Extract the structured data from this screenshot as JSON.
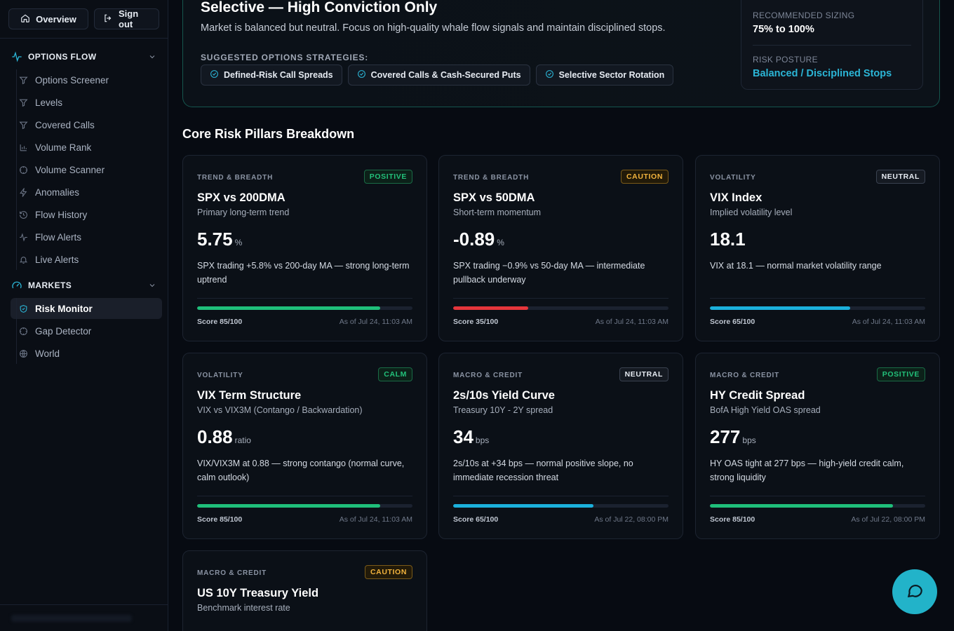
{
  "sidebar": {
    "overview_label": "Overview",
    "signout_label": "Sign out",
    "sections": [
      {
        "label": "OPTIONS FLOW",
        "items": [
          {
            "label": "Options Screener",
            "icon": "filter-icon"
          },
          {
            "label": "Levels",
            "icon": "filter-icon"
          },
          {
            "label": "Covered Calls",
            "icon": "filter-icon"
          },
          {
            "label": "Volume Rank",
            "icon": "bar-chart-icon"
          },
          {
            "label": "Volume Scanner",
            "icon": "scanner-icon"
          },
          {
            "label": "Anomalies",
            "icon": "bolt-icon"
          },
          {
            "label": "Flow History",
            "icon": "history-icon"
          },
          {
            "label": "Flow Alerts",
            "icon": "pulse-icon"
          },
          {
            "label": "Live Alerts",
            "icon": "bell-icon"
          }
        ]
      },
      {
        "label": "MARKETS",
        "items": [
          {
            "label": "Risk Monitor",
            "icon": "shield-icon",
            "active": true
          },
          {
            "label": "Gap Detector",
            "icon": "scanner-icon"
          },
          {
            "label": "World",
            "icon": "globe-icon"
          }
        ]
      }
    ]
  },
  "hero": {
    "title": "Selective — High Conviction Only",
    "description": "Market is balanced but neutral. Focus on high-quality whale flow signals and maintain disciplined stops.",
    "strategies_label": "SUGGESTED OPTIONS STRATEGIES:",
    "strategies": [
      "Defined-Risk Call Spreads",
      "Covered Calls & Cash-Secured Puts",
      "Selective Sector Rotation"
    ],
    "sizing_label": "RECOMMENDED SIZING",
    "sizing_value": "75% to 100%",
    "posture_label": "RISK POSTURE",
    "posture_value": "Balanced / Disciplined Stops"
  },
  "section_title": "Core Risk Pillars Breakdown",
  "cards": [
    {
      "category": "TREND & BREADTH",
      "badge": "POSITIVE",
      "badge_type": "positive",
      "title": "SPX vs 200DMA",
      "subtitle": "Primary long-term trend",
      "value": "5.75",
      "unit": "%",
      "description": "SPX trading +5.8% vs 200-day MA — strong long-term uptrend",
      "score": 85,
      "score_label": "Score 85/100",
      "bar_color": "green",
      "as_of": "As of Jul 24, 11:03 AM"
    },
    {
      "category": "TREND & BREADTH",
      "badge": "CAUTION",
      "badge_type": "caution",
      "title": "SPX vs 50DMA",
      "subtitle": "Short-term momentum",
      "value": "-0.89",
      "unit": "%",
      "description": "SPX trading −0.9% vs 50-day MA — intermediate pullback underway",
      "score": 35,
      "score_label": "Score 35/100",
      "bar_color": "red",
      "as_of": "As of Jul 24, 11:03 AM"
    },
    {
      "category": "VOLATILITY",
      "badge": "NEUTRAL",
      "badge_type": "neutral",
      "title": "VIX Index",
      "subtitle": "Implied volatility level",
      "value": "18.1",
      "unit": "",
      "description": "VIX at 18.1 — normal market volatility range",
      "score": 65,
      "score_label": "Score 65/100",
      "bar_color": "blue",
      "as_of": "As of Jul 24, 11:03 AM"
    },
    {
      "category": "VOLATILITY",
      "badge": "CALM",
      "badge_type": "calm",
      "title": "VIX Term Structure",
      "subtitle": "VIX vs VIX3M (Contango / Backwardation)",
      "value": "0.88",
      "unit": "ratio",
      "description": "VIX/VIX3M at 0.88 — strong contango (normal curve, calm outlook)",
      "score": 85,
      "score_label": "Score 85/100",
      "bar_color": "green",
      "as_of": "As of Jul 24, 11:03 AM"
    },
    {
      "category": "MACRO & CREDIT",
      "badge": "NEUTRAL",
      "badge_type": "neutral",
      "title": "2s/10s Yield Curve",
      "subtitle": "Treasury 10Y - 2Y spread",
      "value": "34",
      "unit": "bps",
      "description": "2s/10s at +34 bps — normal positive slope, no immediate recession threat",
      "score": 65,
      "score_label": "Score 65/100",
      "bar_color": "blue",
      "as_of": "As of Jul 22, 08:00 PM"
    },
    {
      "category": "MACRO & CREDIT",
      "badge": "POSITIVE",
      "badge_type": "positive",
      "title": "HY Credit Spread",
      "subtitle": "BofA High Yield OAS spread",
      "value": "277",
      "unit": "bps",
      "description": "HY OAS tight at 277 bps — high-yield credit calm, strong liquidity",
      "score": 85,
      "score_label": "Score 85/100",
      "bar_color": "green",
      "as_of": "As of Jul 22, 08:00 PM"
    },
    {
      "category": "MACRO & CREDIT",
      "badge": "CAUTION",
      "badge_type": "caution",
      "title": "US 10Y Treasury Yield",
      "subtitle": "Benchmark interest rate",
      "value": "",
      "unit": "",
      "description": "",
      "score": 0,
      "score_label": "",
      "bar_color": "",
      "as_of": ""
    }
  ],
  "colors": {
    "accent": "#2bb5d6",
    "positive": "#1fbf7a",
    "caution": "#f2b33d",
    "negative": "#e5353b",
    "chat_button": "#22b3c9"
  }
}
